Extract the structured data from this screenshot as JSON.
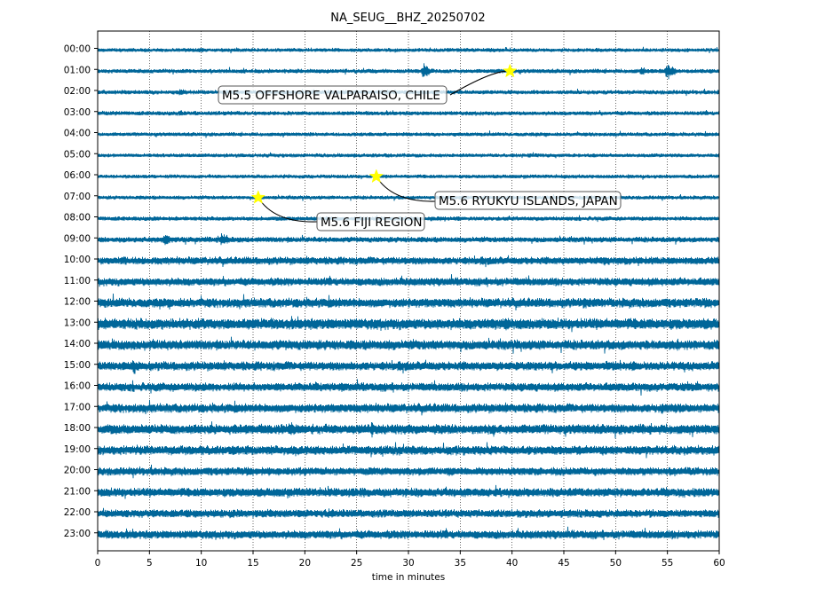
{
  "chart_data": {
    "type": "line",
    "title": "NA_SEUG__BHZ_20250702",
    "xlabel": "time in minutes",
    "ylabel": "",
    "xlim": [
      0,
      60
    ],
    "xticks": [
      0,
      5,
      10,
      15,
      20,
      25,
      30,
      35,
      40,
      45,
      50,
      55,
      60
    ],
    "grid": "vertical dotted at x ticks",
    "line_color": "#006699",
    "hours": [
      "00:00",
      "01:00",
      "02:00",
      "03:00",
      "04:00",
      "05:00",
      "06:00",
      "07:00",
      "08:00",
      "09:00",
      "10:00",
      "11:00",
      "12:00",
      "13:00",
      "14:00",
      "15:00",
      "16:00",
      "17:00",
      "18:00",
      "19:00",
      "20:00",
      "21:00",
      "22:00",
      "23:00"
    ],
    "noise_level": [
      0.9,
      1.0,
      1.0,
      1.0,
      0.9,
      0.9,
      0.9,
      0.9,
      1.0,
      1.3,
      1.8,
      1.9,
      2.2,
      2.6,
      2.3,
      2.1,
      2.0,
      2.1,
      2.3,
      2.2,
      1.9,
      2.1,
      1.9,
      2.0
    ],
    "bursts": [
      {
        "hour": 0,
        "minute": 10,
        "amp": 2.0
      },
      {
        "hour": 1,
        "minute": 31.5,
        "amp": 5.0
      },
      {
        "hour": 1,
        "minute": 55,
        "amp": 5.5
      },
      {
        "hour": 1,
        "minute": 52.5,
        "amp": 2.8
      },
      {
        "hour": 2,
        "minute": 8,
        "amp": 2.5
      },
      {
        "hour": 3,
        "minute": 8,
        "amp": 2.0
      },
      {
        "hour": 9,
        "minute": 6.5,
        "amp": 4.0
      },
      {
        "hour": 9,
        "minute": 12,
        "amp": 4.0
      },
      {
        "hour": 10,
        "minute": 2.5,
        "amp": 3.5
      },
      {
        "hour": 10,
        "minute": 49,
        "amp": 3.0
      },
      {
        "hour": 12,
        "minute": 47,
        "amp": 4.0
      },
      {
        "hour": 13,
        "minute": 39.5,
        "amp": 4.5
      },
      {
        "hour": 13,
        "minute": 8,
        "amp": 3.0
      },
      {
        "hour": 14,
        "minute": 56,
        "amp": 4.0
      },
      {
        "hour": 15,
        "minute": 3.5,
        "amp": 5.0
      },
      {
        "hour": 15,
        "minute": 39,
        "amp": 3.0
      },
      {
        "hour": 16,
        "minute": 21,
        "amp": 3.5
      },
      {
        "hour": 17,
        "minute": 54.5,
        "amp": 3.5
      },
      {
        "hour": 18,
        "minute": 18.5,
        "amp": 5.5
      },
      {
        "hour": 18,
        "minute": 26.5,
        "amp": 5.0
      },
      {
        "hour": 18,
        "minute": 15,
        "amp": 3.5
      },
      {
        "hour": 19,
        "minute": 4,
        "amp": 3.0
      },
      {
        "hour": 20,
        "minute": 34,
        "amp": 3.0
      },
      {
        "hour": 21,
        "minute": 22.5,
        "amp": 3.0
      }
    ],
    "events": [
      {
        "label": "M5.5 OFFSHORE VALPARAISO, CHILE",
        "hour": 1,
        "minute": 39.8
      },
      {
        "label": "M5.6 RYUKYU ISLANDS, JAPAN",
        "hour": 6,
        "minute": 26.9
      },
      {
        "label": "M5.6 FIJI REGION",
        "hour": 7,
        "minute": 15.5
      }
    ]
  },
  "colors": {
    "trace": "#006699",
    "star": "#ffff00",
    "annotation_box": "#ffffff",
    "annotation_box_highlight": "#c6dbe8"
  }
}
